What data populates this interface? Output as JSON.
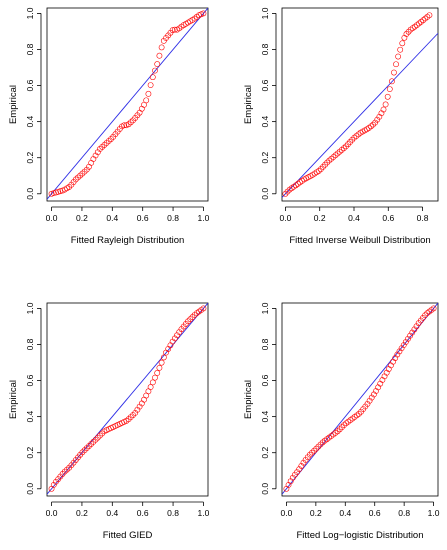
{
  "chart_data": [
    {
      "type": "scatter",
      "xlabel": "Fitted Rayleigh Distribution",
      "ylabel": "Empirical",
      "xlim": [
        -0.03,
        1.03
      ],
      "ylim": [
        -0.04,
        1.03
      ],
      "xticks": [
        0.0,
        0.2,
        0.4,
        0.6,
        0.8,
        1.0
      ],
      "xtick_labels": [
        "0.0",
        "0.2",
        "0.4",
        "0.6",
        "0.8",
        "1.0"
      ],
      "yticks": [
        0.0,
        0.2,
        0.4,
        0.6,
        0.8,
        1.0
      ],
      "ytick_labels": [
        "0.0",
        "0.2",
        "0.4",
        "0.6",
        "0.8",
        "1.0"
      ],
      "line": {
        "intercept": 0,
        "slope": 1,
        "color": "#2e2ee6"
      },
      "points_color": "#ff0000",
      "curve": [
        [
          0.0,
          0.0
        ],
        [
          0.08,
          0.02
        ],
        [
          0.12,
          0.04
        ],
        [
          0.16,
          0.08
        ],
        [
          0.2,
          0.11
        ],
        [
          0.24,
          0.14
        ],
        [
          0.28,
          0.2
        ],
        [
          0.32,
          0.25
        ],
        [
          0.36,
          0.28
        ],
        [
          0.4,
          0.31
        ],
        [
          0.44,
          0.35
        ],
        [
          0.47,
          0.38
        ],
        [
          0.5,
          0.38
        ],
        [
          0.54,
          0.41
        ],
        [
          0.58,
          0.45
        ],
        [
          0.6,
          0.48
        ],
        [
          0.62,
          0.51
        ],
        [
          0.64,
          0.56
        ],
        [
          0.66,
          0.63
        ],
        [
          0.68,
          0.68
        ],
        [
          0.7,
          0.73
        ],
        [
          0.72,
          0.8
        ],
        [
          0.74,
          0.85
        ],
        [
          0.77,
          0.88
        ],
        [
          0.8,
          0.91
        ],
        [
          0.83,
          0.91
        ],
        [
          0.86,
          0.93
        ],
        [
          0.9,
          0.95
        ],
        [
          0.94,
          0.97
        ],
        [
          0.97,
          0.99
        ],
        [
          1.0,
          1.0
        ]
      ]
    },
    {
      "type": "scatter",
      "xlabel": "Fitted Inverse Weibull Distribution",
      "ylabel": "Empirical",
      "xlim": [
        -0.02,
        0.89
      ],
      "ylim": [
        -0.04,
        1.03
      ],
      "xticks": [
        0.0,
        0.2,
        0.4,
        0.6,
        0.8
      ],
      "xtick_labels": [
        "0.0",
        "0.2",
        "0.4",
        "0.6",
        "0.8"
      ],
      "yticks": [
        0.0,
        0.2,
        0.4,
        0.6,
        0.8,
        1.0
      ],
      "ytick_labels": [
        "0.0",
        "0.2",
        "0.4",
        "0.6",
        "0.8",
        "1.0"
      ],
      "line": {
        "intercept": 0,
        "slope": 1,
        "color": "#2e2ee6"
      },
      "points_color": "#ff0000",
      "curve": [
        [
          0.0,
          0.0
        ],
        [
          0.02,
          0.02
        ],
        [
          0.05,
          0.04
        ],
        [
          0.08,
          0.06
        ],
        [
          0.11,
          0.08
        ],
        [
          0.15,
          0.1
        ],
        [
          0.2,
          0.13
        ],
        [
          0.25,
          0.18
        ],
        [
          0.3,
          0.22
        ],
        [
          0.35,
          0.26
        ],
        [
          0.4,
          0.31
        ],
        [
          0.44,
          0.34
        ],
        [
          0.48,
          0.36
        ],
        [
          0.52,
          0.39
        ],
        [
          0.55,
          0.43
        ],
        [
          0.58,
          0.48
        ],
        [
          0.6,
          0.55
        ],
        [
          0.62,
          0.62
        ],
        [
          0.64,
          0.7
        ],
        [
          0.66,
          0.77
        ],
        [
          0.68,
          0.83
        ],
        [
          0.7,
          0.88
        ],
        [
          0.73,
          0.91
        ],
        [
          0.76,
          0.93
        ],
        [
          0.8,
          0.96
        ],
        [
          0.84,
          0.99
        ]
      ]
    },
    {
      "type": "scatter",
      "xlabel": "Fitted GIED",
      "ylabel": "Empirical",
      "xlim": [
        -0.03,
        1.03
      ],
      "ylim": [
        -0.04,
        1.03
      ],
      "xticks": [
        0.0,
        0.2,
        0.4,
        0.6,
        0.8,
        1.0
      ],
      "xtick_labels": [
        "0.0",
        "0.2",
        "0.4",
        "0.6",
        "0.8",
        "1.0"
      ],
      "yticks": [
        0.0,
        0.2,
        0.4,
        0.6,
        0.8,
        1.0
      ],
      "ytick_labels": [
        "0.0",
        "0.2",
        "0.4",
        "0.6",
        "0.8",
        "1.0"
      ],
      "line": {
        "intercept": 0,
        "slope": 1,
        "color": "#2e2ee6"
      },
      "points_color": "#ff0000",
      "curve": [
        [
          0.0,
          0.0
        ],
        [
          0.02,
          0.03
        ],
        [
          0.05,
          0.06
        ],
        [
          0.08,
          0.09
        ],
        [
          0.12,
          0.12
        ],
        [
          0.16,
          0.16
        ],
        [
          0.2,
          0.2
        ],
        [
          0.25,
          0.24
        ],
        [
          0.3,
          0.28
        ],
        [
          0.35,
          0.32
        ],
        [
          0.4,
          0.34
        ],
        [
          0.45,
          0.36
        ],
        [
          0.5,
          0.38
        ],
        [
          0.55,
          0.42
        ],
        [
          0.6,
          0.48
        ],
        [
          0.65,
          0.56
        ],
        [
          0.7,
          0.65
        ],
        [
          0.75,
          0.75
        ],
        [
          0.8,
          0.82
        ],
        [
          0.85,
          0.88
        ],
        [
          0.9,
          0.93
        ],
        [
          0.95,
          0.97
        ],
        [
          1.0,
          1.0
        ]
      ]
    },
    {
      "type": "scatter",
      "xlabel": "Fitted Log−logistic Distribution",
      "ylabel": "Empirical",
      "xlim": [
        -0.03,
        1.03
      ],
      "ylim": [
        -0.04,
        1.03
      ],
      "xticks": [
        0.0,
        0.2,
        0.4,
        0.6,
        0.8,
        1.0
      ],
      "xtick_labels": [
        "0.0",
        "0.2",
        "0.4",
        "0.6",
        "0.8",
        "1.0"
      ],
      "yticks": [
        0.0,
        0.2,
        0.4,
        0.6,
        0.8,
        1.0
      ],
      "ytick_labels": [
        "0.0",
        "0.2",
        "0.4",
        "0.6",
        "0.8",
        "1.0"
      ],
      "line": {
        "intercept": 0,
        "slope": 1,
        "color": "#2e2ee6"
      },
      "points_color": "#ff0000",
      "curve": [
        [
          0.0,
          0.0
        ],
        [
          0.02,
          0.03
        ],
        [
          0.05,
          0.07
        ],
        [
          0.08,
          0.1
        ],
        [
          0.12,
          0.15
        ],
        [
          0.16,
          0.19
        ],
        [
          0.2,
          0.22
        ],
        [
          0.25,
          0.26
        ],
        [
          0.3,
          0.29
        ],
        [
          0.35,
          0.32
        ],
        [
          0.4,
          0.36
        ],
        [
          0.45,
          0.39
        ],
        [
          0.5,
          0.42
        ],
        [
          0.55,
          0.47
        ],
        [
          0.6,
          0.53
        ],
        [
          0.65,
          0.6
        ],
        [
          0.7,
          0.67
        ],
        [
          0.75,
          0.74
        ],
        [
          0.8,
          0.8
        ],
        [
          0.85,
          0.86
        ],
        [
          0.9,
          0.92
        ],
        [
          0.95,
          0.97
        ],
        [
          1.0,
          1.0
        ]
      ]
    }
  ]
}
